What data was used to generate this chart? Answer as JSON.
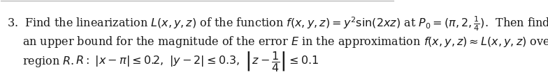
{
  "line1": "3.  Find the linearization $L(x, y, z)$ of the function $f(x, y, z) = y^2 \\sin(2xz)$ at $P_0 = (\\pi, 2, \\frac{1}{4})$.  Then find",
  "line2": "an upper bound for the magnitude of the error $E$ in the approximation $f(x, y, z) \\approx L(x, y, z)$ over the",
  "line3": "region $R$.",
  "line4": "$R: \\ |x - \\pi| \\leq 0.2, \\ |y - 2| \\leq 0.3, \\ \\left|z - \\dfrac{1}{4}\\right| \\leq 0.1$",
  "text_color": "#1a1a1a",
  "background_color": "#ffffff",
  "fontsize": 11.5,
  "fontsize_R": 11.5,
  "border_color": "#aaaaaa",
  "border_linewidth": 0.8
}
